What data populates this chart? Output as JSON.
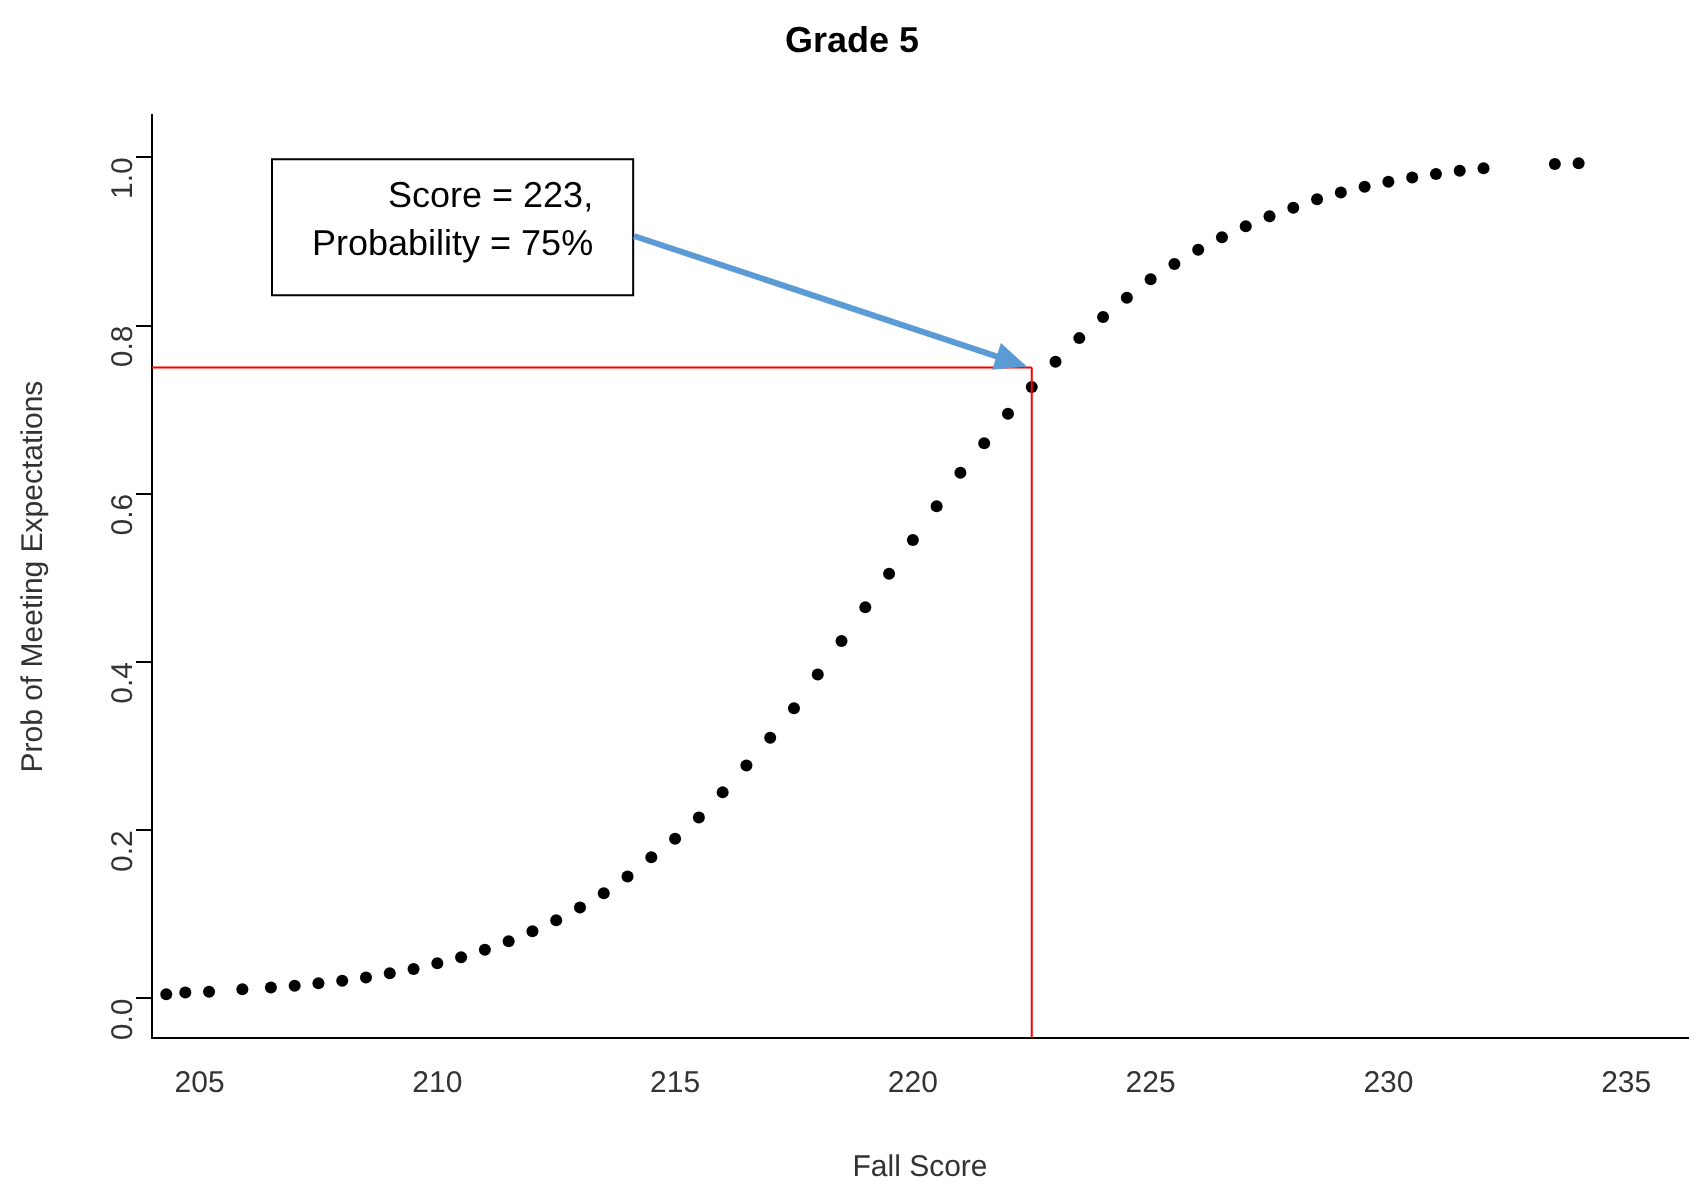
{
  "chart_data": {
    "type": "scatter",
    "title": "Grade 5",
    "xlabel": "Fall Score",
    "ylabel": "Prob of Meeting Expectations",
    "x": [
      204.3,
      204.7,
      205.2,
      205.9,
      206.5,
      207,
      207.5,
      208,
      208.5,
      209,
      209.5,
      210,
      210.5,
      211,
      211.5,
      212,
      212.5,
      213,
      213.5,
      214,
      214.5,
      215,
      215.5,
      216,
      216.5,
      217,
      217.5,
      218,
      218.5,
      219,
      219.5,
      220,
      220.5,
      221,
      221.5,
      222,
      222.5,
      223,
      223.5,
      224,
      224.5,
      225,
      225.5,
      226,
      226.5,
      227,
      227.5,
      228,
      228.5,
      229,
      229.5,
      230,
      230.5,
      231,
      231.5,
      232,
      233.5,
      234
    ],
    "series": [
      {
        "color": "#000000",
        "values": [
          0.005,
          0.007,
          0.008,
          0.011,
          0.013,
          0.015,
          0.018,
          0.021,
          0.025,
          0.03,
          0.035,
          0.042,
          0.049,
          0.058,
          0.068,
          0.08,
          0.093,
          0.108,
          0.125,
          0.145,
          0.168,
          0.19,
          0.215,
          0.245,
          0.277,
          0.31,
          0.345,
          0.385,
          0.425,
          0.465,
          0.505,
          0.545,
          0.585,
          0.625,
          0.66,
          0.695,
          0.727,
          0.757,
          0.785,
          0.81,
          0.833,
          0.855,
          0.873,
          0.89,
          0.905,
          0.918,
          0.93,
          0.94,
          0.95,
          0.958,
          0.965,
          0.971,
          0.976,
          0.98,
          0.984,
          0.987,
          0.992,
          0.993
        ]
      }
    ],
    "xlim": [
      204,
      236.3
    ],
    "xticks": [
      205,
      210,
      215,
      220,
      225,
      230,
      235
    ],
    "ylim": [
      -0.047,
      1.05
    ],
    "yticks": [
      {
        "value": 0,
        "label": "0.0"
      },
      {
        "value": 0.2,
        "label": "0.2"
      },
      {
        "value": 0.4,
        "label": "0.4"
      },
      {
        "value": 0.6,
        "label": "0.6"
      },
      {
        "value": 0.8,
        "label": "0.8"
      },
      {
        "value": 1,
        "label": "1.0"
      }
    ],
    "ref_lines": [
      {
        "axis": "x",
        "value": 222.5,
        "color": "#ff0000"
      },
      {
        "axis": "y",
        "value": 0.75,
        "color": "#ff0000"
      }
    ],
    "annotations": [
      "Score = 223,\nProbability = 75%"
    ],
    "grid": false,
    "legend": false,
    "marker": "circle"
  }
}
